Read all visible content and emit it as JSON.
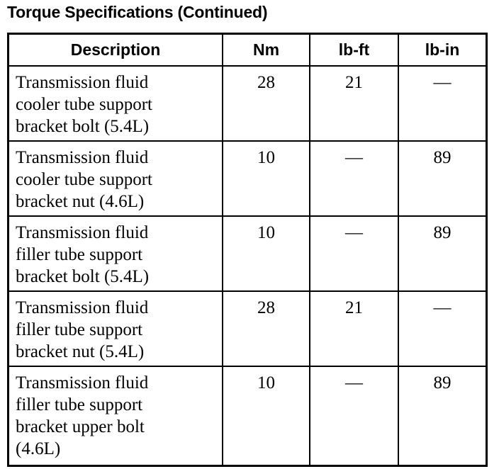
{
  "title": "Torque Specifications (Continued)",
  "table": {
    "headers": [
      "Description",
      "Nm",
      "lb-ft",
      "lb-in"
    ],
    "rows": [
      {
        "description": [
          "Transmission fluid",
          "cooler tube support",
          "bracket bolt (5.4L)"
        ],
        "nm": "28",
        "lbft": "21",
        "lbin": "—"
      },
      {
        "description": [
          "Transmission fluid",
          "cooler tube support",
          "bracket nut (4.6L)"
        ],
        "nm": "10",
        "lbft": "—",
        "lbin": "89"
      },
      {
        "description": [
          "Transmission fluid",
          "filler tube support",
          "bracket bolt (5.4L)"
        ],
        "nm": "10",
        "lbft": "—",
        "lbin": "89"
      },
      {
        "description": [
          "Transmission fluid",
          "filler tube support",
          "bracket nut (5.4L)"
        ],
        "nm": "28",
        "lbft": "21",
        "lbin": "—"
      },
      {
        "description": [
          "Transmission fluid",
          "filler tube support",
          "bracket upper bolt",
          "(4.6L)"
        ],
        "nm": "10",
        "lbft": "—",
        "lbin": "89"
      }
    ]
  }
}
